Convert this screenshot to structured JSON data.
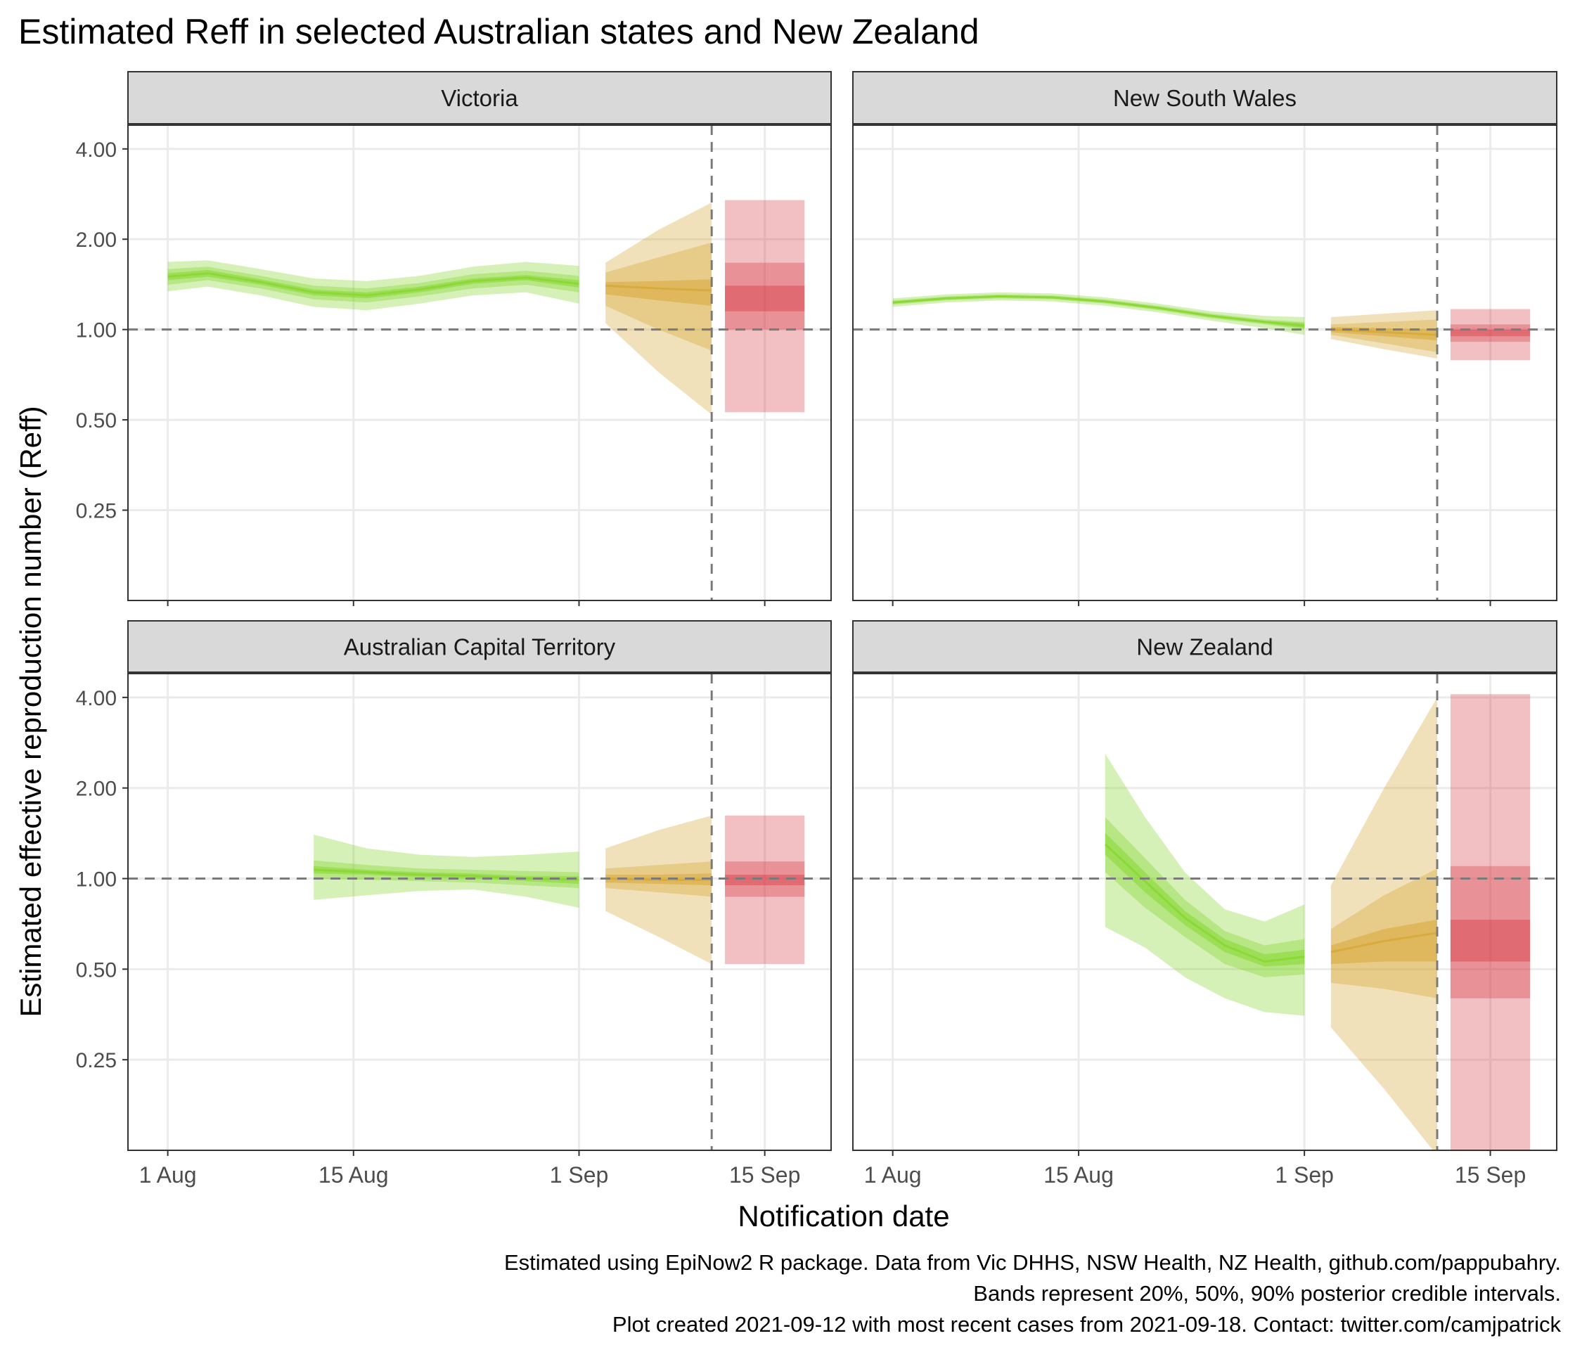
{
  "title": "Estimated Reff in selected Australian states and New Zealand",
  "xlabel": "Notification date",
  "ylabel": "Estimated effective reproduction number (Reff)",
  "caption": [
    "Estimated using EpiNow2 R package. Data from Vic DHHS, NSW Health, NZ Health, github.com/pappubahry.",
    "Bands represent 20%, 50%, 90% posterior credible intervals.",
    "Plot created 2021-09-12 with most recent cases from 2021-09-18. Contact: twitter.com/camjpatrick"
  ],
  "colors": {
    "estimate": "#7ed321",
    "estimate_based_on_partial_data": "#d4a22a",
    "forecast": "#d63b45",
    "panel_strip": "#d9d9d9",
    "grid": "#ebebeb",
    "reference_line": "#7a7a7a"
  },
  "chart_data": {
    "type": "area",
    "facets": [
      "Victoria",
      "New South Wales",
      "Australian Capital Territory",
      "New Zealand"
    ],
    "y_scale": "log2",
    "ylim": [
      0.125,
      4.8
    ],
    "xlim": [
      "2021-07-29",
      "2021-09-20"
    ],
    "y_ticks": [
      0.25,
      0.5,
      1,
      2,
      4
    ],
    "y_tick_labels": [
      "0.25",
      "0.50",
      "1.00",
      "2.00",
      "4.00"
    ],
    "x_ticks": [
      "2021-08-01",
      "2021-08-15",
      "2021-09-01",
      "2021-09-15"
    ],
    "x_tick_labels": [
      "1 Aug",
      "15 Aug",
      "1 Sep",
      "15 Sep"
    ],
    "reference_line_y": 1,
    "vertical_line_date": "2021-09-11",
    "grid": true,
    "band_levels": [
      "20%",
      "50%",
      "90%"
    ],
    "panels": [
      {
        "name": "Victoria",
        "estimate": {
          "date": [
            "2021-08-01",
            "2021-08-04",
            "2021-08-08",
            "2021-08-12",
            "2021-08-16",
            "2021-08-20",
            "2021-08-24",
            "2021-08-28",
            "2021-09-01"
          ],
          "median": [
            1.5,
            1.54,
            1.44,
            1.33,
            1.3,
            1.36,
            1.45,
            1.49,
            1.42
          ],
          "lower_20": [
            1.46,
            1.5,
            1.41,
            1.3,
            1.27,
            1.33,
            1.42,
            1.46,
            1.38
          ],
          "upper_20": [
            1.54,
            1.58,
            1.47,
            1.36,
            1.33,
            1.39,
            1.48,
            1.52,
            1.46
          ],
          "lower_50": [
            1.41,
            1.46,
            1.37,
            1.26,
            1.23,
            1.29,
            1.37,
            1.41,
            1.33
          ],
          "upper_50": [
            1.59,
            1.62,
            1.51,
            1.4,
            1.37,
            1.43,
            1.53,
            1.57,
            1.51
          ],
          "lower_90": [
            1.34,
            1.39,
            1.3,
            1.19,
            1.16,
            1.22,
            1.3,
            1.33,
            1.22
          ],
          "upper_90": [
            1.68,
            1.7,
            1.59,
            1.48,
            1.45,
            1.51,
            1.62,
            1.68,
            1.63
          ]
        },
        "partial": {
          "date": [
            "2021-09-03",
            "2021-09-07",
            "2021-09-11"
          ],
          "median": [
            1.4,
            1.37,
            1.35
          ],
          "lower_20": [
            1.31,
            1.25,
            1.2
          ],
          "upper_20": [
            1.44,
            1.45,
            1.47
          ],
          "lower_50": [
            1.2,
            1.0,
            0.85
          ],
          "upper_50": [
            1.55,
            1.74,
            1.95
          ],
          "lower_90": [
            1.05,
            0.72,
            0.52
          ],
          "upper_90": [
            1.67,
            2.15,
            2.65
          ]
        },
        "forecast": {
          "date_start": "2021-09-12",
          "date_end": "2021-09-18",
          "lower_20": [
            1.15
          ],
          "upper_20": [
            1.4
          ],
          "lower_50": [
            1.0
          ],
          "upper_50": [
            1.67
          ],
          "lower_90": [
            0.53
          ],
          "upper_90": [
            2.7
          ]
        }
      },
      {
        "name": "New South Wales",
        "estimate": {
          "date": [
            "2021-08-01",
            "2021-08-05",
            "2021-08-09",
            "2021-08-13",
            "2021-08-17",
            "2021-08-21",
            "2021-08-25",
            "2021-08-29",
            "2021-09-01"
          ],
          "median": [
            1.23,
            1.27,
            1.29,
            1.28,
            1.24,
            1.18,
            1.11,
            1.06,
            1.03
          ],
          "lower_20": [
            1.22,
            1.26,
            1.28,
            1.27,
            1.23,
            1.17,
            1.1,
            1.05,
            1.01
          ],
          "upper_20": [
            1.24,
            1.28,
            1.3,
            1.29,
            1.25,
            1.19,
            1.12,
            1.07,
            1.05
          ],
          "lower_50": [
            1.21,
            1.25,
            1.27,
            1.26,
            1.22,
            1.16,
            1.09,
            1.04,
            1.0
          ],
          "upper_50": [
            1.25,
            1.29,
            1.31,
            1.3,
            1.26,
            1.2,
            1.13,
            1.08,
            1.06
          ],
          "lower_90": [
            1.19,
            1.23,
            1.25,
            1.24,
            1.2,
            1.14,
            1.07,
            1.01,
            0.96
          ],
          "upper_90": [
            1.27,
            1.31,
            1.33,
            1.32,
            1.28,
            1.22,
            1.15,
            1.11,
            1.1
          ]
        },
        "partial": {
          "date": [
            "2021-09-03",
            "2021-09-07",
            "2021-09-11"
          ],
          "median": [
            1.0,
            0.98,
            0.96
          ],
          "lower_20": [
            0.98,
            0.95,
            0.92
          ],
          "upper_20": [
            1.02,
            1.01,
            1.0
          ],
          "lower_50": [
            0.96,
            0.9,
            0.84
          ],
          "upper_50": [
            1.04,
            1.06,
            1.08
          ],
          "lower_90": [
            0.93,
            0.86,
            0.8
          ],
          "upper_90": [
            1.1,
            1.13,
            1.16
          ]
        },
        "forecast": {
          "date_start": "2021-09-12",
          "date_end": "2021-09-18",
          "lower_20": [
            0.95
          ],
          "upper_20": [
            1.0
          ],
          "lower_50": [
            0.91
          ],
          "upper_50": [
            1.04
          ],
          "lower_90": [
            0.79
          ],
          "upper_90": [
            1.17
          ]
        }
      },
      {
        "name": "Australian Capital Territory",
        "estimate": {
          "date": [
            "2021-08-12",
            "2021-08-16",
            "2021-08-20",
            "2021-08-24",
            "2021-08-28",
            "2021-09-01"
          ],
          "median": [
            1.07,
            1.05,
            1.03,
            1.02,
            1.0,
            0.99
          ],
          "lower_20": [
            1.04,
            1.03,
            1.01,
            1.0,
            0.98,
            0.96
          ],
          "upper_20": [
            1.1,
            1.07,
            1.05,
            1.04,
            1.02,
            1.02
          ],
          "lower_50": [
            1.0,
            0.99,
            0.98,
            0.97,
            0.95,
            0.93
          ],
          "upper_50": [
            1.15,
            1.11,
            1.08,
            1.07,
            1.06,
            1.05
          ],
          "lower_90": [
            0.85,
            0.88,
            0.91,
            0.92,
            0.87,
            0.8
          ],
          "upper_90": [
            1.4,
            1.26,
            1.2,
            1.18,
            1.2,
            1.23
          ]
        },
        "partial": {
          "date": [
            "2021-09-03",
            "2021-09-07",
            "2021-09-11"
          ],
          "median": [
            1.0,
            0.99,
            0.99
          ],
          "lower_20": [
            0.97,
            0.96,
            0.95
          ],
          "upper_20": [
            1.03,
            1.03,
            1.04
          ],
          "lower_50": [
            0.93,
            0.9,
            0.87
          ],
          "upper_50": [
            1.08,
            1.11,
            1.14
          ],
          "lower_90": [
            0.78,
            0.64,
            0.52
          ],
          "upper_90": [
            1.26,
            1.45,
            1.62
          ]
        },
        "forecast": {
          "date_start": "2021-09-12",
          "date_end": "2021-09-18",
          "lower_20": [
            0.95
          ],
          "upper_20": [
            1.03
          ],
          "lower_50": [
            0.87
          ],
          "upper_50": [
            1.14
          ],
          "lower_90": [
            0.52
          ],
          "upper_90": [
            1.62
          ]
        }
      },
      {
        "name": "New Zealand",
        "estimate": {
          "date": [
            "2021-08-17",
            "2021-08-20",
            "2021-08-23",
            "2021-08-26",
            "2021-08-29",
            "2021-09-01"
          ],
          "median": [
            1.3,
            0.98,
            0.74,
            0.6,
            0.53,
            0.55
          ],
          "lower_20": [
            1.2,
            0.9,
            0.7,
            0.57,
            0.51,
            0.52
          ],
          "upper_20": [
            1.42,
            1.05,
            0.78,
            0.63,
            0.56,
            0.58
          ],
          "lower_50": [
            1.05,
            0.8,
            0.64,
            0.52,
            0.47,
            0.48
          ],
          "upper_50": [
            1.6,
            1.17,
            0.85,
            0.67,
            0.6,
            0.63
          ],
          "lower_90": [
            0.69,
            0.59,
            0.47,
            0.4,
            0.36,
            0.35
          ],
          "upper_90": [
            2.6,
            1.6,
            1.05,
            0.79,
            0.72,
            0.82
          ]
        },
        "partial": {
          "date": [
            "2021-09-03",
            "2021-09-07",
            "2021-09-11"
          ],
          "median": [
            0.57,
            0.62,
            0.66
          ],
          "lower_20": [
            0.52,
            0.53,
            0.53
          ],
          "upper_20": [
            0.6,
            0.68,
            0.73
          ],
          "lower_50": [
            0.45,
            0.43,
            0.4
          ],
          "upper_50": [
            0.68,
            0.88,
            1.08
          ],
          "lower_90": [
            0.32,
            0.2,
            0.12
          ],
          "upper_90": [
            0.95,
            2.0,
            4.0
          ]
        },
        "forecast": {
          "date_start": "2021-09-12",
          "date_end": "2021-09-18",
          "lower_20": [
            0.53
          ],
          "upper_20": [
            0.73
          ],
          "lower_50": [
            0.4
          ],
          "upper_50": [
            1.1
          ],
          "lower_90": [
            0.12
          ],
          "upper_90": [
            4.1
          ]
        }
      }
    ]
  }
}
